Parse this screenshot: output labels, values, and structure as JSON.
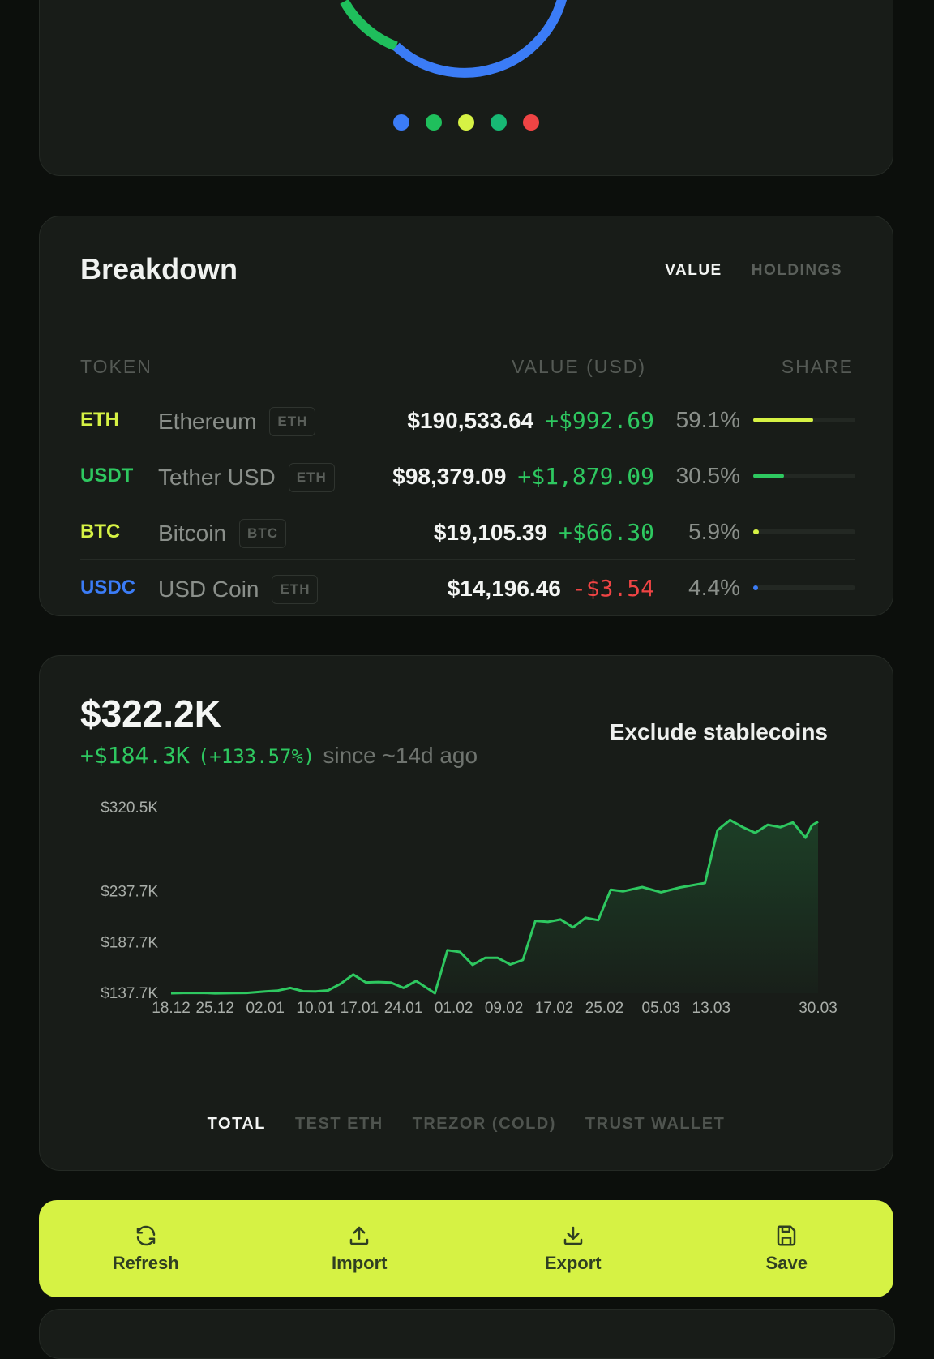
{
  "donut": {
    "segments": [
      {
        "color": "#3b7cf6"
      },
      {
        "color": "#1fbf5c"
      },
      {
        "color": "#d6f244"
      },
      {
        "color": "#17b874"
      },
      {
        "color": "#ef4444"
      }
    ]
  },
  "breakdown": {
    "title": "Breakdown",
    "tabs": [
      "VALUE",
      "HOLDINGS"
    ],
    "active_tab": "VALUE",
    "columns": {
      "token": "TOKEN",
      "value": "VALUE (USD)",
      "share": "SHARE"
    },
    "rows": [
      {
        "symbol": "ETH",
        "name": "Ethereum",
        "chain": "ETH",
        "value": "$190,533.64",
        "change": "+$992.69",
        "share": "59.1%",
        "share_value": 59.1,
        "symbol_color": "#d6f244",
        "bar_color": "#d6f244",
        "change_color": "#2ec860"
      },
      {
        "symbol": "USDT",
        "name": "Tether USD",
        "chain": "ETH",
        "value": "$98,379.09",
        "change": "+$1,879.09",
        "share": "30.5%",
        "share_value": 30.5,
        "symbol_color": "#2ec860",
        "bar_color": "#2ec860",
        "change_color": "#2ec860"
      },
      {
        "symbol": "BTC",
        "name": "Bitcoin",
        "chain": "BTC",
        "value": "$19,105.39",
        "change": "+$66.30",
        "share": "5.9%",
        "share_value": 5.9,
        "symbol_color": "#d6f244",
        "bar_color": "#d6f244",
        "change_color": "#2ec860"
      },
      {
        "symbol": "USDC",
        "name": "USD Coin",
        "chain": "ETH",
        "value": "$14,196.46",
        "change": "-$3.54",
        "share": "4.4%",
        "share_value": 4.4,
        "symbol_color": "#3b7cf6",
        "bar_color": "#3b7cf6",
        "change_color": "#ef4444"
      }
    ]
  },
  "value_chart": {
    "total": "$322.2K",
    "delta": "+$184.3K",
    "delta_pct": "(+133.57%)",
    "since": "since ~14d ago",
    "exclude_label": "Exclude stablecoins",
    "wallet_tabs": [
      "TOTAL",
      "TEST ETH",
      "TREZOR (COLD)",
      "TRUST WALLET"
    ],
    "active_wallet_tab": "TOTAL"
  },
  "chart_data": {
    "type": "area",
    "title": "",
    "xlabel": "",
    "ylabel": "",
    "y_tick_labels": [
      "$320.5K",
      "$237.7K",
      "$187.7K",
      "$137.7K"
    ],
    "x_tick_labels": [
      "18.12",
      "25.12",
      "02.01",
      "10.01",
      "17.01",
      "24.01",
      "01.02",
      "09.02",
      "17.02",
      "25.02",
      "05.03",
      "13.03",
      "30.03"
    ],
    "ylim": [
      137.7,
      320.5
    ],
    "y_unit": "thousands USD",
    "series": [
      {
        "color": "#2ec860",
        "points": [
          [
            "18.12",
            137.7
          ],
          [
            "20.12",
            138.0
          ],
          [
            "23.12",
            138.1
          ],
          [
            "25.12",
            137.6
          ],
          [
            "28.12",
            137.9
          ],
          [
            "30.12",
            138.0
          ],
          [
            "02.01",
            139.5
          ],
          [
            "04.01",
            140.3
          ],
          [
            "06.01",
            143.0
          ],
          [
            "08.01",
            139.7
          ],
          [
            "10.01",
            139.5
          ],
          [
            "12.01",
            140.5
          ],
          [
            "14.01",
            147.1
          ],
          [
            "16.01",
            156.2
          ],
          [
            "18.01",
            148.4
          ],
          [
            "20.01",
            148.8
          ],
          [
            "22.01",
            148.3
          ],
          [
            "24.01",
            143.0
          ],
          [
            "26.01",
            149.8
          ],
          [
            "29.01",
            137.7
          ],
          [
            "31.01",
            180.2
          ],
          [
            "02.02",
            178.4
          ],
          [
            "04.02",
            165.7
          ],
          [
            "06.02",
            172.6
          ],
          [
            "08.02",
            172.6
          ],
          [
            "10.02",
            166.0
          ],
          [
            "12.02",
            170.5
          ],
          [
            "14.02",
            209.1
          ],
          [
            "16.02",
            208.0
          ],
          [
            "18.02",
            210.4
          ],
          [
            "20.02",
            202.6
          ],
          [
            "22.02",
            212.1
          ],
          [
            "24.02",
            209.7
          ],
          [
            "26.02",
            239.7
          ],
          [
            "28.02",
            238.1
          ],
          [
            "02.03",
            242.3
          ],
          [
            "05.03",
            237.2
          ],
          [
            "08.03",
            241.9
          ],
          [
            "12.03",
            246.3
          ],
          [
            "14.03",
            298.3
          ],
          [
            "16.03",
            308.3
          ],
          [
            "18.03",
            301.3
          ],
          [
            "20.03",
            295.7
          ],
          [
            "22.03",
            303.6
          ],
          [
            "24.03",
            301.2
          ],
          [
            "26.03",
            305.9
          ],
          [
            "28.03",
            290.9
          ],
          [
            "29.03",
            302.9
          ],
          [
            "30.03",
            306.7
          ]
        ]
      }
    ]
  },
  "actions": [
    {
      "label": "Refresh",
      "icon": "refresh-icon"
    },
    {
      "label": "Import",
      "icon": "upload-icon"
    },
    {
      "label": "Export",
      "icon": "download-icon"
    },
    {
      "label": "Save",
      "icon": "save-icon"
    }
  ]
}
